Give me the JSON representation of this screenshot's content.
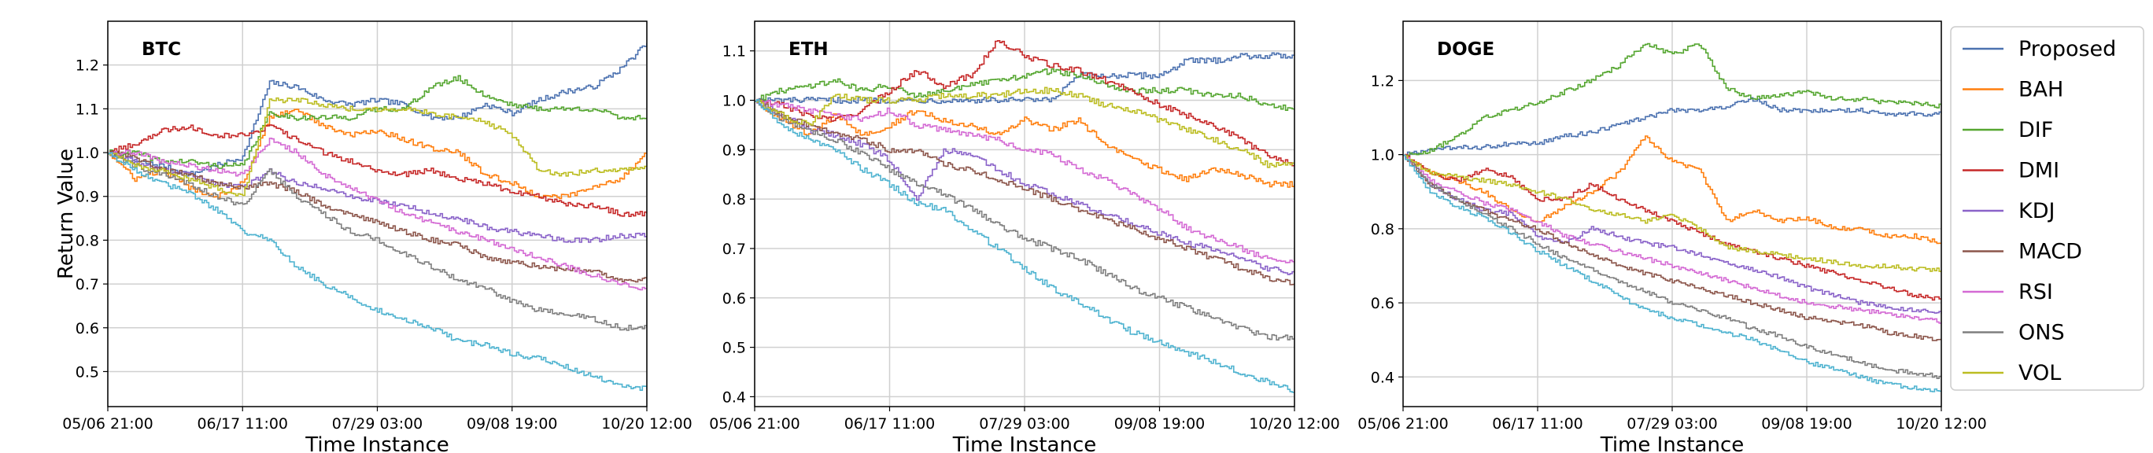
{
  "chart_data": [
    {
      "type": "line",
      "title": "BTC",
      "xlabel": "Time Instance",
      "ylabel": "Return Value",
      "x_ticks": [
        "05/06 21:00",
        "06/17 11:00",
        "07/29 03:00",
        "09/08 19:00",
        "10/20 12:00"
      ],
      "y_ticks": [
        0.5,
        0.6,
        0.7,
        0.8,
        0.9,
        1.0,
        1.1,
        1.2
      ],
      "ylim": [
        0.42,
        1.3
      ],
      "grid": true,
      "x": [
        0,
        0.05,
        0.1,
        0.15,
        0.2,
        0.25,
        0.3,
        0.35,
        0.4,
        0.45,
        0.5,
        0.55,
        0.6,
        0.65,
        0.7,
        0.75,
        0.8,
        0.85,
        0.9,
        0.95,
        1.0
      ],
      "series": [
        {
          "name": "Proposed",
          "values": [
            1.0,
            0.98,
            0.97,
            0.95,
            0.97,
            0.99,
            1.16,
            1.15,
            1.12,
            1.11,
            1.12,
            1.11,
            1.08,
            1.08,
            1.11,
            1.09,
            1.12,
            1.14,
            1.15,
            1.19,
            1.25
          ]
        },
        {
          "name": "BAH",
          "values": [
            1.0,
            0.94,
            0.96,
            0.92,
            0.9,
            0.93,
            1.08,
            1.1,
            1.06,
            1.04,
            1.05,
            1.03,
            1.01,
            1.0,
            0.95,
            0.93,
            0.9,
            0.9,
            0.92,
            0.94,
            1.0
          ]
        },
        {
          "name": "DIF",
          "values": [
            1.0,
            1.0,
            0.98,
            0.98,
            0.97,
            0.97,
            1.09,
            1.08,
            1.08,
            1.08,
            1.1,
            1.1,
            1.15,
            1.17,
            1.13,
            1.11,
            1.1,
            1.1,
            1.1,
            1.08,
            1.08
          ]
        },
        {
          "name": "DMI",
          "values": [
            1.0,
            1.02,
            1.05,
            1.06,
            1.04,
            1.04,
            1.06,
            1.03,
            1.0,
            0.98,
            0.96,
            0.95,
            0.96,
            0.94,
            0.93,
            0.91,
            0.9,
            0.88,
            0.88,
            0.86,
            0.86
          ]
        },
        {
          "name": "KDJ",
          "values": [
            1.0,
            0.98,
            0.96,
            0.95,
            0.93,
            0.92,
            0.96,
            0.93,
            0.92,
            0.9,
            0.89,
            0.88,
            0.86,
            0.85,
            0.83,
            0.82,
            0.81,
            0.8,
            0.8,
            0.81,
            0.81
          ]
        },
        {
          "name": "MACD",
          "values": [
            1.0,
            0.99,
            0.96,
            0.95,
            0.93,
            0.92,
            0.93,
            0.91,
            0.88,
            0.86,
            0.84,
            0.82,
            0.8,
            0.79,
            0.76,
            0.75,
            0.74,
            0.73,
            0.73,
            0.71,
            0.71
          ]
        },
        {
          "name": "RSI",
          "values": [
            1.0,
            1.0,
            0.98,
            0.97,
            0.96,
            0.95,
            1.03,
            1.0,
            0.95,
            0.92,
            0.89,
            0.86,
            0.84,
            0.82,
            0.8,
            0.78,
            0.76,
            0.74,
            0.72,
            0.7,
            0.69
          ]
        },
        {
          "name": "ONS",
          "values": [
            1.0,
            0.97,
            0.95,
            0.93,
            0.9,
            0.88,
            0.96,
            0.9,
            0.86,
            0.82,
            0.8,
            0.77,
            0.74,
            0.71,
            0.69,
            0.66,
            0.64,
            0.63,
            0.62,
            0.6,
            0.6
          ]
        },
        {
          "name": "VOL",
          "values": [
            1.0,
            0.97,
            0.96,
            0.94,
            0.92,
            0.9,
            1.12,
            1.12,
            1.11,
            1.1,
            1.1,
            1.1,
            1.09,
            1.08,
            1.07,
            1.04,
            0.96,
            0.95,
            0.96,
            0.96,
            0.97
          ]
        },
        {
          "name": "",
          "values": [
            1.0,
            0.96,
            0.93,
            0.91,
            0.87,
            0.82,
            0.8,
            0.74,
            0.7,
            0.67,
            0.64,
            0.62,
            0.6,
            0.57,
            0.56,
            0.54,
            0.53,
            0.51,
            0.49,
            0.47,
            0.46
          ]
        }
      ]
    },
    {
      "type": "line",
      "title": "ETH",
      "xlabel": "Time Instance",
      "ylabel": "",
      "x_ticks": [
        "05/06 21:00",
        "06/17 11:00",
        "07/29 03:00",
        "09/08 19:00",
        "10/20 12:00"
      ],
      "y_ticks": [
        0.4,
        0.5,
        0.6,
        0.7,
        0.8,
        0.9,
        1.0,
        1.1
      ],
      "ylim": [
        0.38,
        1.16
      ],
      "grid": true,
      "x": [
        0,
        0.05,
        0.1,
        0.15,
        0.2,
        0.25,
        0.3,
        0.35,
        0.4,
        0.45,
        0.5,
        0.55,
        0.6,
        0.65,
        0.7,
        0.75,
        0.8,
        0.85,
        0.9,
        0.95,
        1.0
      ],
      "series": [
        {
          "name": "Proposed",
          "values": [
            1.0,
            1.0,
            1.0,
            1.0,
            1.0,
            1.0,
            1.0,
            1.0,
            1.0,
            1.0,
            1.0,
            1.0,
            1.05,
            1.05,
            1.05,
            1.05,
            1.08,
            1.08,
            1.09,
            1.09,
            1.09
          ]
        },
        {
          "name": "BAH",
          "values": [
            1.0,
            0.96,
            0.93,
            0.97,
            0.93,
            0.95,
            0.98,
            0.96,
            0.95,
            0.93,
            0.96,
            0.94,
            0.96,
            0.91,
            0.88,
            0.86,
            0.84,
            0.86,
            0.85,
            0.83,
            0.83
          ]
        },
        {
          "name": "DIF",
          "values": [
            1.0,
            1.02,
            1.03,
            1.04,
            1.02,
            1.03,
            1.01,
            1.02,
            1.03,
            1.04,
            1.05,
            1.06,
            1.05,
            1.03,
            1.02,
            1.02,
            1.02,
            1.01,
            1.01,
            0.99,
            0.98
          ]
        },
        {
          "name": "DMI",
          "values": [
            1.0,
            0.99,
            0.97,
            0.96,
            0.98,
            1.02,
            1.06,
            1.03,
            1.05,
            1.12,
            1.09,
            1.07,
            1.06,
            1.04,
            1.02,
            0.99,
            0.97,
            0.95,
            0.92,
            0.89,
            0.87
          ]
        },
        {
          "name": "KDJ",
          "values": [
            1.0,
            0.97,
            0.94,
            0.93,
            0.91,
            0.88,
            0.8,
            0.9,
            0.89,
            0.86,
            0.83,
            0.81,
            0.79,
            0.77,
            0.75,
            0.73,
            0.71,
            0.7,
            0.68,
            0.66,
            0.65
          ]
        },
        {
          "name": "MACD",
          "values": [
            1.0,
            0.97,
            0.95,
            0.93,
            0.92,
            0.9,
            0.9,
            0.87,
            0.86,
            0.84,
            0.82,
            0.8,
            0.78,
            0.76,
            0.74,
            0.72,
            0.7,
            0.68,
            0.66,
            0.64,
            0.63
          ]
        },
        {
          "name": "RSI",
          "values": [
            1.0,
            0.99,
            0.98,
            0.97,
            0.96,
            0.98,
            0.95,
            0.94,
            0.93,
            0.92,
            0.9,
            0.89,
            0.86,
            0.84,
            0.81,
            0.78,
            0.74,
            0.72,
            0.7,
            0.68,
            0.67
          ]
        },
        {
          "name": "ONS",
          "values": [
            1.0,
            0.96,
            0.94,
            0.92,
            0.89,
            0.86,
            0.83,
            0.81,
            0.78,
            0.75,
            0.72,
            0.7,
            0.68,
            0.65,
            0.62,
            0.6,
            0.58,
            0.56,
            0.54,
            0.52,
            0.52
          ]
        },
        {
          "name": "VOL",
          "values": [
            1.0,
            0.97,
            0.95,
            1.01,
            1.0,
            1.0,
            1.0,
            1.01,
            1.01,
            1.01,
            1.02,
            1.02,
            1.01,
            0.99,
            0.98,
            0.96,
            0.94,
            0.92,
            0.9,
            0.87,
            0.87
          ]
        },
        {
          "name": "",
          "values": [
            1.0,
            0.95,
            0.92,
            0.9,
            0.86,
            0.83,
            0.79,
            0.78,
            0.74,
            0.7,
            0.66,
            0.62,
            0.59,
            0.56,
            0.53,
            0.51,
            0.49,
            0.47,
            0.45,
            0.43,
            0.41
          ]
        }
      ]
    },
    {
      "type": "line",
      "title": "DOGE",
      "xlabel": "Time Instance",
      "ylabel": "",
      "x_ticks": [
        "05/06 21:00",
        "06/17 11:00",
        "07/29 03:00",
        "09/08 19:00",
        "10/20 12:00"
      ],
      "y_ticks": [
        0.4,
        0.6,
        0.8,
        1.0,
        1.2
      ],
      "ylim": [
        0.32,
        1.36
      ],
      "grid": true,
      "x": [
        0,
        0.05,
        0.1,
        0.15,
        0.2,
        0.25,
        0.3,
        0.35,
        0.4,
        0.45,
        0.5,
        0.55,
        0.6,
        0.65,
        0.7,
        0.75,
        0.8,
        0.85,
        0.9,
        0.95,
        1.0
      ],
      "series": [
        {
          "name": "Proposed",
          "values": [
            1.0,
            1.01,
            1.02,
            1.02,
            1.03,
            1.03,
            1.05,
            1.06,
            1.08,
            1.1,
            1.12,
            1.12,
            1.13,
            1.15,
            1.12,
            1.12,
            1.12,
            1.12,
            1.11,
            1.11,
            1.11
          ]
        },
        {
          "name": "BAH",
          "values": [
            1.0,
            0.95,
            0.93,
            0.9,
            0.85,
            0.82,
            0.86,
            0.9,
            0.95,
            1.05,
            0.98,
            0.96,
            0.82,
            0.85,
            0.82,
            0.83,
            0.8,
            0.8,
            0.78,
            0.78,
            0.76
          ]
        },
        {
          "name": "DIF",
          "values": [
            1.0,
            1.01,
            1.05,
            1.1,
            1.12,
            1.14,
            1.17,
            1.2,
            1.24,
            1.3,
            1.27,
            1.3,
            1.18,
            1.15,
            1.16,
            1.17,
            1.15,
            1.15,
            1.14,
            1.14,
            1.13
          ]
        },
        {
          "name": "DMI",
          "values": [
            1.0,
            0.95,
            0.93,
            0.96,
            0.94,
            0.88,
            0.88,
            0.92,
            0.88,
            0.85,
            0.82,
            0.79,
            0.76,
            0.74,
            0.72,
            0.7,
            0.68,
            0.66,
            0.64,
            0.62,
            0.61
          ]
        },
        {
          "name": "KDJ",
          "values": [
            1.0,
            0.92,
            0.88,
            0.85,
            0.84,
            0.78,
            0.76,
            0.8,
            0.78,
            0.76,
            0.75,
            0.73,
            0.71,
            0.69,
            0.67,
            0.64,
            0.62,
            0.6,
            0.59,
            0.58,
            0.57
          ]
        },
        {
          "name": "MACD",
          "values": [
            1.0,
            0.92,
            0.88,
            0.85,
            0.82,
            0.8,
            0.76,
            0.73,
            0.7,
            0.68,
            0.66,
            0.64,
            0.62,
            0.6,
            0.58,
            0.56,
            0.55,
            0.54,
            0.52,
            0.51,
            0.5
          ]
        },
        {
          "name": "RSI",
          "values": [
            1.0,
            0.93,
            0.9,
            0.87,
            0.85,
            0.82,
            0.78,
            0.76,
            0.74,
            0.72,
            0.7,
            0.68,
            0.66,
            0.64,
            0.62,
            0.6,
            0.59,
            0.58,
            0.57,
            0.56,
            0.55
          ]
        },
        {
          "name": "ONS",
          "values": [
            1.0,
            0.92,
            0.88,
            0.84,
            0.8,
            0.76,
            0.72,
            0.69,
            0.66,
            0.63,
            0.6,
            0.58,
            0.56,
            0.53,
            0.51,
            0.48,
            0.46,
            0.44,
            0.42,
            0.41,
            0.4
          ]
        },
        {
          "name": "VOL",
          "values": [
            1.0,
            0.95,
            0.94,
            0.93,
            0.92,
            0.9,
            0.88,
            0.85,
            0.84,
            0.82,
            0.84,
            0.8,
            0.75,
            0.74,
            0.73,
            0.72,
            0.71,
            0.7,
            0.7,
            0.69,
            0.69
          ]
        },
        {
          "name": "",
          "values": [
            1.0,
            0.9,
            0.86,
            0.83,
            0.79,
            0.74,
            0.7,
            0.66,
            0.62,
            0.58,
            0.56,
            0.54,
            0.52,
            0.5,
            0.47,
            0.44,
            0.42,
            0.4,
            0.38,
            0.37,
            0.36
          ]
        }
      ]
    }
  ],
  "legend": {
    "placement": "right",
    "entries": [
      "Proposed",
      "BAH",
      "DIF",
      "DMI",
      "KDJ",
      "MACD",
      "RSI",
      "ONS",
      "VOL"
    ]
  },
  "colors": [
    "#4c72b0",
    "#ff7f0e",
    "#55a630",
    "#c62828",
    "#8a63c9",
    "#8c564b",
    "#d46ad4",
    "#7f7f7f",
    "#bcbd22",
    "#4fb3d0"
  ]
}
